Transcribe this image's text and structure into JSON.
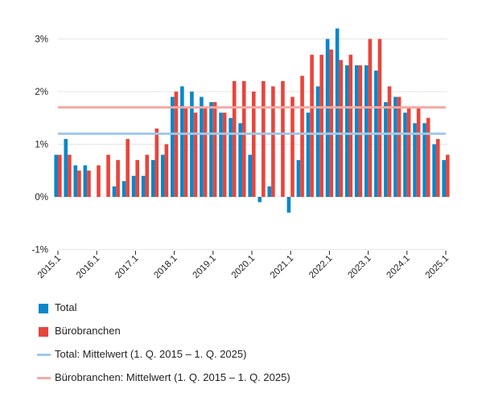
{
  "chart_data": {
    "type": "bar",
    "categories": [
      "2015.1",
      "2015.2",
      "2015.3",
      "2015.4",
      "2016.1",
      "2016.2",
      "2016.3",
      "2016.4",
      "2017.1",
      "2017.2",
      "2017.3",
      "2017.4",
      "2018.1",
      "2018.2",
      "2018.3",
      "2018.4",
      "2019.1",
      "2019.2",
      "2019.3",
      "2019.4",
      "2020.1",
      "2020.2",
      "2020.3",
      "2020.4",
      "2021.1",
      "2021.2",
      "2021.3",
      "2021.4",
      "2022.1",
      "2022.2",
      "2022.3",
      "2022.4",
      "2023.1",
      "2023.2",
      "2023.3",
      "2023.4",
      "2024.1",
      "2024.2",
      "2024.3",
      "2024.4",
      "2025.1"
    ],
    "x_tick_labels": [
      "2015.1",
      "2016.1",
      "2017.1",
      "2018.1",
      "2019.1",
      "2020.1",
      "2021.1",
      "2022.1",
      "2023.1",
      "2024.1",
      "2025.1"
    ],
    "series": [
      {
        "name": "Total",
        "color": "#0a87c8",
        "values": [
          0.8,
          1.1,
          0.6,
          0.6,
          0.0,
          0.0,
          0.2,
          0.3,
          0.4,
          0.4,
          0.7,
          0.8,
          1.9,
          2.1,
          2.0,
          1.9,
          1.8,
          1.6,
          1.5,
          1.4,
          0.8,
          -0.1,
          0.2,
          0.0,
          -0.3,
          0.7,
          1.6,
          2.1,
          3.0,
          3.2,
          2.5,
          2.5,
          2.5,
          2.4,
          1.8,
          1.9,
          1.6,
          1.4,
          1.4,
          1.0,
          0.7
        ]
      },
      {
        "name": "Bürobranchen",
        "color": "#e8453c",
        "values": [
          0.8,
          0.8,
          0.5,
          0.5,
          0.6,
          0.8,
          0.7,
          1.1,
          0.7,
          0.8,
          1.3,
          1.0,
          2.0,
          1.7,
          1.6,
          1.7,
          1.8,
          1.6,
          2.2,
          2.2,
          2.0,
          2.2,
          2.1,
          2.2,
          1.9,
          2.3,
          2.7,
          2.7,
          2.8,
          2.6,
          2.7,
          2.5,
          3.0,
          3.0,
          2.1,
          1.9,
          1.7,
          1.7,
          1.5,
          1.1,
          0.8
        ]
      }
    ],
    "reference_lines": [
      {
        "name": "Total: Mittelwert (1. Q. 2015 – 1. Q. 2025)",
        "value": 1.2,
        "color": "#9ec9ea"
      },
      {
        "name": "Bürobranchen: Mittelwert (1. Q. 2015 – 1. Q. 2025)",
        "value": 1.7,
        "color": "#f4aaa3"
      }
    ],
    "y_ticks": [
      -1,
      0,
      1,
      2,
      3
    ],
    "y_tick_labels": [
      "-1%",
      "0%",
      "1%",
      "2%",
      "3%"
    ],
    "ylim": [
      -1,
      3.2
    ],
    "legend_position": "bottom-left",
    "grid": "horizontal"
  },
  "legend": [
    {
      "kind": "swatch",
      "label": "Total",
      "color": "#0a87c8"
    },
    {
      "kind": "swatch",
      "label": "Bürobranchen",
      "color": "#e8453c"
    },
    {
      "kind": "line",
      "label": "Total: Mittelwert (1. Q. 2015 – 1. Q. 2025)",
      "color": "#9ec9ea"
    },
    {
      "kind": "line",
      "label": "Bürobranchen: Mittelwert (1. Q. 2015 – 1. Q. 2025)",
      "color": "#f4aaa3"
    }
  ]
}
